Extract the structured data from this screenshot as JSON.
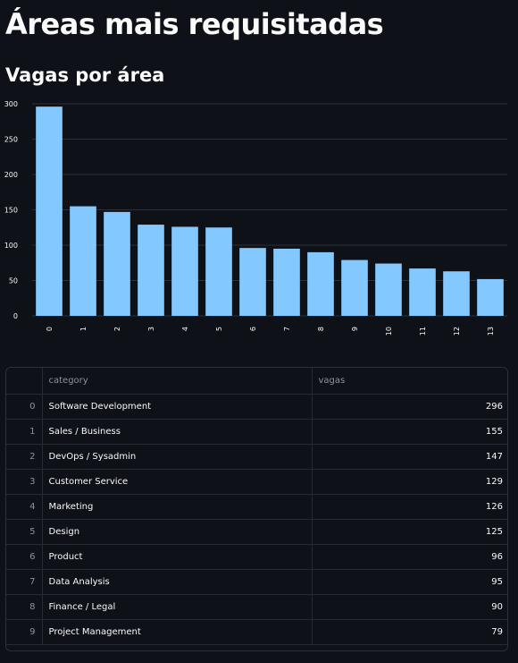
{
  "page": {
    "title": "Áreas mais requisitadas",
    "subtitle": "Vagas por área"
  },
  "chart_data": {
    "type": "bar",
    "categories": [
      "0",
      "1",
      "2",
      "3",
      "4",
      "5",
      "6",
      "7",
      "8",
      "9",
      "10",
      "11",
      "12",
      "13"
    ],
    "values": [
      296,
      155,
      147,
      129,
      126,
      125,
      96,
      95,
      90,
      79,
      74,
      67,
      63,
      52
    ],
    "ylim": [
      0,
      300
    ],
    "yticks": [
      0,
      50,
      100,
      150,
      200,
      250,
      300
    ],
    "grid": true,
    "xlabel": "",
    "ylabel": "",
    "colors": {
      "bar": "#83c9ff",
      "grid": "#2a2f3a",
      "background": "#0e1117"
    }
  },
  "table": {
    "columns": [
      "",
      "category",
      "vagas"
    ],
    "rows": [
      [
        "0",
        "Software Development",
        "296"
      ],
      [
        "1",
        "Sales / Business",
        "155"
      ],
      [
        "2",
        "DevOps / Sysadmin",
        "147"
      ],
      [
        "3",
        "Customer Service",
        "129"
      ],
      [
        "4",
        "Marketing",
        "126"
      ],
      [
        "5",
        "Design",
        "125"
      ],
      [
        "6",
        "Product",
        "96"
      ],
      [
        "7",
        "Data Analysis",
        "95"
      ],
      [
        "8",
        "Finance / Legal",
        "90"
      ],
      [
        "9",
        "Project Management",
        "79"
      ]
    ]
  }
}
